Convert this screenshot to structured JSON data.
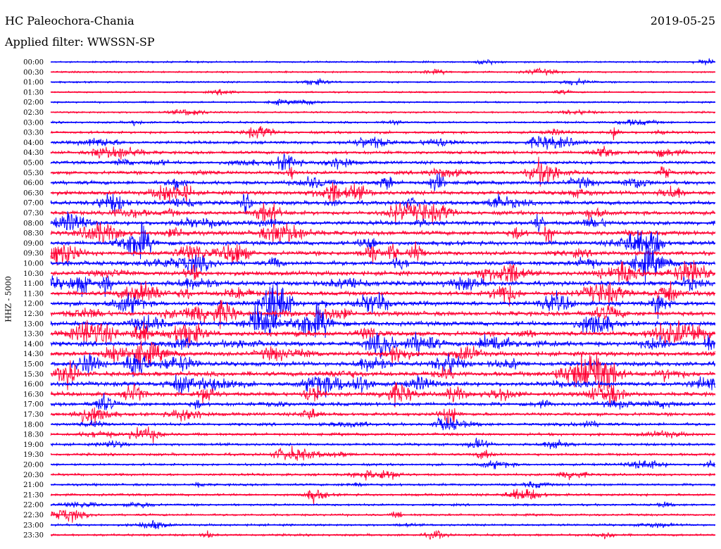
{
  "header": {
    "station": "HC Paleochora-Chania",
    "date": "2019-05-25",
    "filter": "Applied filter: WWSSN-SP",
    "channel": "HHZ - 5000"
  },
  "colors": {
    "odd_trace": "#0000ff",
    "even_trace": "#ff0033",
    "background": "#ffffff"
  },
  "chart_data": {
    "type": "line",
    "title": "HC Paleochora-Chania",
    "ylabel": "HHZ - 5000",
    "row_interval_minutes": 30,
    "rows": [
      {
        "time": "00:00",
        "activity": 0.15
      },
      {
        "time": "00:30",
        "activity": 0.15
      },
      {
        "time": "01:00",
        "activity": 0.15
      },
      {
        "time": "01:30",
        "activity": 0.15
      },
      {
        "time": "02:00",
        "activity": 0.15
      },
      {
        "time": "02:30",
        "activity": 0.2
      },
      {
        "time": "03:00",
        "activity": 0.25
      },
      {
        "time": "03:30",
        "activity": 0.4
      },
      {
        "time": "04:00",
        "activity": 0.5
      },
      {
        "time": "04:30",
        "activity": 0.55
      },
      {
        "time": "05:00",
        "activity": 0.6
      },
      {
        "time": "05:30",
        "activity": 0.65
      },
      {
        "time": "06:00",
        "activity": 0.75
      },
      {
        "time": "06:30",
        "activity": 0.85
      },
      {
        "time": "07:00",
        "activity": 0.85
      },
      {
        "time": "07:30",
        "activity": 0.85
      },
      {
        "time": "08:00",
        "activity": 0.9
      },
      {
        "time": "08:30",
        "activity": 0.9
      },
      {
        "time": "09:00",
        "activity": 0.9
      },
      {
        "time": "09:30",
        "activity": 0.9
      },
      {
        "time": "10:00",
        "activity": 0.95
      },
      {
        "time": "10:30",
        "activity": 1.0
      },
      {
        "time": "11:00",
        "activity": 1.0
      },
      {
        "time": "11:30",
        "activity": 0.95
      },
      {
        "time": "12:00",
        "activity": 1.0
      },
      {
        "time": "12:30",
        "activity": 1.0
      },
      {
        "time": "13:00",
        "activity": 1.0
      },
      {
        "time": "13:30",
        "activity": 1.0
      },
      {
        "time": "14:00",
        "activity": 1.0
      },
      {
        "time": "14:30",
        "activity": 1.0
      },
      {
        "time": "15:00",
        "activity": 1.0
      },
      {
        "time": "15:30",
        "activity": 1.0
      },
      {
        "time": "16:00",
        "activity": 1.0
      },
      {
        "time": "16:30",
        "activity": 0.85
      },
      {
        "time": "17:00",
        "activity": 0.7
      },
      {
        "time": "17:30",
        "activity": 0.6
      },
      {
        "time": "18:00",
        "activity": 0.5
      },
      {
        "time": "18:30",
        "activity": 0.45
      },
      {
        "time": "19:00",
        "activity": 0.4
      },
      {
        "time": "19:30",
        "activity": 0.4
      },
      {
        "time": "20:00",
        "activity": 0.35
      },
      {
        "time": "20:30",
        "activity": 0.35
      },
      {
        "time": "21:00",
        "activity": 0.35
      },
      {
        "time": "21:30",
        "activity": 0.35
      },
      {
        "time": "22:00",
        "activity": 0.3
      },
      {
        "time": "22:30",
        "activity": 0.3
      },
      {
        "time": "23:00",
        "activity": 0.3
      },
      {
        "time": "23:30",
        "activity": 0.3
      }
    ]
  }
}
